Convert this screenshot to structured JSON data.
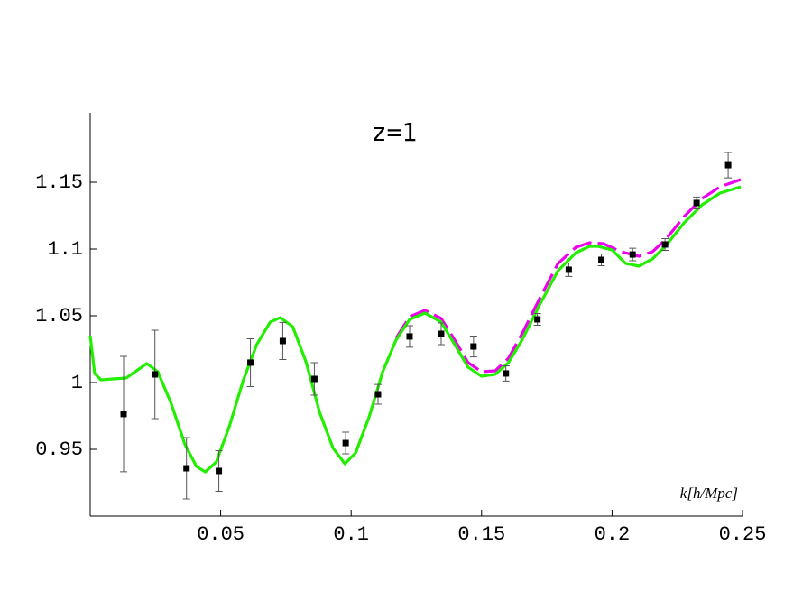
{
  "chart_data": {
    "type": "scatter",
    "title": "z=1",
    "x_label": "k[h/Mpc]",
    "xlim": [
      0,
      0.25
    ],
    "ylim": [
      0.9,
      1.2
    ],
    "xticks": [
      0.05,
      0.1,
      0.15,
      0.2,
      0.25
    ],
    "yticks": [
      0.95,
      1,
      1.05,
      1.1,
      1.15
    ],
    "grid": false,
    "series": [
      {
        "type": "line",
        "color": "#ee00ee",
        "dash": true,
        "x": [
          0.1172,
          0.1224,
          0.1283,
          0.1345,
          0.1397,
          0.1448,
          0.15,
          0.1552,
          0.1603,
          0.1655,
          0.1724,
          0.1793,
          0.1862,
          0.1914,
          0.1966,
          0.2034,
          0.2103,
          0.2155,
          0.2207,
          0.2276,
          0.2345,
          0.2414,
          0.2493
        ],
        "values": [
          1.0331,
          1.0493,
          1.0541,
          1.048,
          1.0318,
          1.0149,
          1.0081,
          1.0088,
          1.0182,
          1.0365,
          1.0635,
          1.0892,
          1.1014,
          1.1047,
          1.1041,
          1.098,
          1.0946,
          1.098,
          1.1074,
          1.1243,
          1.1378,
          1.1466,
          1.152
        ]
      },
      {
        "type": "line",
        "color": "#22ee00",
        "dash": false,
        "x": [
          0,
          0.0017,
          0.0041,
          0.0086,
          0.0138,
          0.0172,
          0.0217,
          0.0259,
          0.031,
          0.0362,
          0.0407,
          0.0441,
          0.0483,
          0.0534,
          0.0586,
          0.0638,
          0.069,
          0.0728,
          0.0776,
          0.0828,
          0.0879,
          0.0931,
          0.0976,
          0.1017,
          0.1069,
          0.1121,
          0.1172,
          0.1224,
          0.1283,
          0.1345,
          0.1397,
          0.1448,
          0.15,
          0.1552,
          0.1603,
          0.1655,
          0.1724,
          0.1793,
          0.1862,
          0.1914,
          0.1948,
          0.2,
          0.2052,
          0.2103,
          0.2155,
          0.2207,
          0.2276,
          0.2345,
          0.2414,
          0.2493
        ],
        "values": [
          1.0351,
          1.0068,
          1.002,
          1.0027,
          1.0034,
          1.0081,
          1.0142,
          1.0081,
          0.9845,
          0.9541,
          0.9372,
          0.9331,
          0.9405,
          0.9676,
          1.0014,
          1.0284,
          1.0453,
          1.0486,
          1.0419,
          1.0149,
          0.9777,
          0.9507,
          0.9392,
          0.9473,
          0.9743,
          1.0081,
          1.0318,
          1.0473,
          1.052,
          1.0453,
          1.0284,
          1.0115,
          1.0047,
          1.0061,
          1.0149,
          1.0318,
          1.0588,
          1.0838,
          1.0973,
          1.102,
          1.102,
          1.0993,
          1.0892,
          1.0872,
          1.0926,
          1.1027,
          1.1196,
          1.1331,
          1.1419,
          1.1466
        ]
      },
      {
        "type": "scatter",
        "color": "#000000",
        "x": [
          0.0128,
          0.0248,
          0.0369,
          0.0493,
          0.0614,
          0.0738,
          0.0859,
          0.0979,
          0.1103,
          0.1224,
          0.1345,
          0.1469,
          0.1593,
          0.1714,
          0.1834,
          0.1959,
          0.2079,
          0.2203,
          0.2324,
          0.2445
        ],
        "values": [
          0.9764,
          1.0061,
          0.9358,
          0.9338,
          1.0149,
          1.0311,
          1.0027,
          0.9547,
          0.9912,
          1.0345,
          1.0365,
          1.027,
          1.0068,
          1.0473,
          1.0845,
          1.0919,
          1.0959,
          1.1034,
          1.1345,
          1.1628
        ],
        "errors": [
          0.0432,
          0.0331,
          0.023,
          0.0152,
          0.0179,
          0.0139,
          0.0122,
          0.0081,
          0.0074,
          0.0081,
          0.0081,
          0.0078,
          0.0057,
          0.0044,
          0.005,
          0.0044,
          0.0047,
          0.0044,
          0.0044,
          0.0095
        ]
      }
    ]
  }
}
